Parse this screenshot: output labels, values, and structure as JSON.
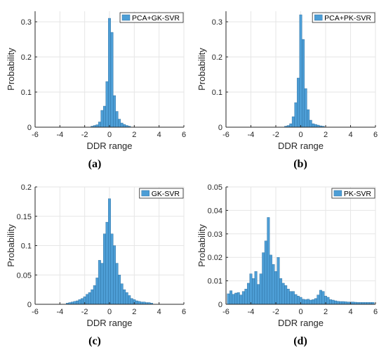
{
  "figure": {
    "panels": [
      {
        "key": "a",
        "caption": "(a)",
        "legend": "PCA+GK-SVR",
        "xlabel": "DDR range",
        "ylabel": "Probability"
      },
      {
        "key": "b",
        "caption": "(b)",
        "legend": "PCA+PK-SVR",
        "xlabel": "DDR range",
        "ylabel": "Probability"
      },
      {
        "key": "c",
        "caption": "(c)",
        "legend": "GK-SVR",
        "xlabel": "DDR range",
        "ylabel": "Probability"
      },
      {
        "key": "d",
        "caption": "(d)",
        "legend": "PK-SVR",
        "xlabel": "DDR range",
        "ylabel": "Probability"
      }
    ],
    "bar_color": "#4d9ed6",
    "bar_edge": "#1f5f8f",
    "axis_color": "#262626",
    "grid_color": "#e6e6e6"
  },
  "chart_data": [
    {
      "type": "bar",
      "title": "",
      "legend": "PCA+GK-SVR",
      "xlabel": "DDR range",
      "ylabel": "Probability",
      "xlim": [
        -6,
        6
      ],
      "ylim": [
        0,
        0.33
      ],
      "xticks": [
        -6,
        -4,
        -2,
        0,
        2,
        4,
        6
      ],
      "yticks": [
        0,
        0.1,
        0.2,
        0.3
      ],
      "ytick_labels": [
        "0",
        "0.1",
        "0.2",
        "0.3"
      ],
      "grid": true,
      "legend_position": "top-right",
      "bin_width": 0.2,
      "x": [
        -1.4,
        -1.2,
        -1.0,
        -0.8,
        -0.6,
        -0.4,
        -0.2,
        0.0,
        0.2,
        0.4,
        0.6,
        0.8,
        1.0,
        1.2,
        1.4,
        1.6
      ],
      "values": [
        0.003,
        0.005,
        0.007,
        0.015,
        0.048,
        0.06,
        0.13,
        0.31,
        0.27,
        0.09,
        0.045,
        0.023,
        0.012,
        0.008,
        0.005,
        0.003
      ]
    },
    {
      "type": "bar",
      "title": "",
      "legend": "PCA+PK-SVR",
      "xlabel": "DDR range",
      "ylabel": "Probability",
      "xlim": [
        -6,
        6
      ],
      "ylim": [
        0,
        0.33
      ],
      "xticks": [
        -6,
        -4,
        -2,
        0,
        2,
        4,
        6
      ],
      "yticks": [
        0,
        0.1,
        0.2,
        0.3
      ],
      "ytick_labels": [
        "0",
        "0.1",
        "0.2",
        "0.3"
      ],
      "grid": true,
      "legend_position": "top-right",
      "bin_width": 0.2,
      "x": [
        -1.2,
        -1.0,
        -0.8,
        -0.6,
        -0.4,
        -0.2,
        0.0,
        0.2,
        0.4,
        0.6,
        0.8,
        1.0,
        1.2,
        1.4,
        1.6,
        1.8
      ],
      "values": [
        0.003,
        0.005,
        0.01,
        0.03,
        0.07,
        0.14,
        0.32,
        0.25,
        0.11,
        0.05,
        0.02,
        0.01,
        0.008,
        0.006,
        0.004,
        0.003
      ]
    },
    {
      "type": "bar",
      "title": "",
      "legend": "GK-SVR",
      "xlabel": "DDR range",
      "ylabel": "Probability",
      "xlim": [
        -6,
        6
      ],
      "ylim": [
        0,
        0.2
      ],
      "xticks": [
        -6,
        -4,
        -2,
        0,
        2,
        4,
        6
      ],
      "yticks": [
        0,
        0.05,
        0.1,
        0.15,
        0.2
      ],
      "ytick_labels": [
        "0",
        "0.05",
        "0.1",
        "0.15",
        "0.2"
      ],
      "grid": true,
      "legend_position": "top-right",
      "bin_width": 0.2,
      "x": [
        -3.4,
        -3.2,
        -3.0,
        -2.8,
        -2.6,
        -2.4,
        -2.2,
        -2.0,
        -1.8,
        -1.6,
        -1.4,
        -1.2,
        -1.0,
        -0.8,
        -0.6,
        -0.4,
        -0.2,
        0.0,
        0.2,
        0.4,
        0.6,
        0.8,
        1.0,
        1.2,
        1.4,
        1.6,
        1.8,
        2.0,
        2.2,
        2.4,
        2.6,
        2.8,
        3.0,
        3.2,
        3.4
      ],
      "values": [
        0.002,
        0.003,
        0.004,
        0.005,
        0.006,
        0.008,
        0.01,
        0.013,
        0.017,
        0.02,
        0.025,
        0.032,
        0.045,
        0.075,
        0.07,
        0.12,
        0.14,
        0.18,
        0.12,
        0.1,
        0.07,
        0.05,
        0.035,
        0.025,
        0.02,
        0.015,
        0.01,
        0.008,
        0.006,
        0.005,
        0.004,
        0.004,
        0.003,
        0.003,
        0.002
      ]
    },
    {
      "type": "bar",
      "title": "",
      "legend": "PK-SVR",
      "xlabel": "DDR range",
      "ylabel": "Probability",
      "xlim": [
        -6,
        6
      ],
      "ylim": [
        0,
        0.05
      ],
      "xticks": [
        -6,
        -4,
        -2,
        0,
        2,
        4,
        6
      ],
      "yticks": [
        0,
        0.01,
        0.02,
        0.03,
        0.04,
        0.05
      ],
      "ytick_labels": [
        "0",
        "0.01",
        "0.02",
        "0.03",
        "0.04",
        "0.05"
      ],
      "grid": true,
      "legend_position": "top-right",
      "bin_width": 0.2,
      "x": [
        -5.8,
        -5.6,
        -5.4,
        -5.2,
        -5.0,
        -4.8,
        -4.6,
        -4.4,
        -4.2,
        -4.0,
        -3.8,
        -3.6,
        -3.4,
        -3.2,
        -3.0,
        -2.8,
        -2.6,
        -2.4,
        -2.2,
        -2.0,
        -1.8,
        -1.6,
        -1.4,
        -1.2,
        -1.0,
        -0.8,
        -0.6,
        -0.4,
        -0.2,
        0.0,
        0.2,
        0.4,
        0.6,
        0.8,
        1.0,
        1.2,
        1.4,
        1.6,
        1.8,
        2.0,
        2.2,
        2.4,
        2.6,
        2.8,
        3.0,
        3.2,
        3.4,
        3.6,
        3.8,
        4.0,
        4.2,
        4.4,
        4.6,
        4.8,
        5.0,
        5.2,
        5.4,
        5.6,
        5.8
      ],
      "values": [
        0.0045,
        0.0058,
        0.0043,
        0.0048,
        0.005,
        0.004,
        0.0055,
        0.0065,
        0.009,
        0.013,
        0.011,
        0.014,
        0.0085,
        0.013,
        0.022,
        0.027,
        0.037,
        0.021,
        0.017,
        0.014,
        0.02,
        0.011,
        0.009,
        0.008,
        0.0065,
        0.0055,
        0.0055,
        0.0042,
        0.0035,
        0.003,
        0.0022,
        0.002,
        0.0022,
        0.0018,
        0.002,
        0.0025,
        0.004,
        0.006,
        0.0055,
        0.0035,
        0.003,
        0.002,
        0.0018,
        0.0015,
        0.0013,
        0.0012,
        0.0012,
        0.0011,
        0.001,
        0.001,
        0.001,
        0.0009,
        0.0008,
        0.0008,
        0.0008,
        0.0008,
        0.0008,
        0.0008,
        0.0008
      ]
    }
  ]
}
